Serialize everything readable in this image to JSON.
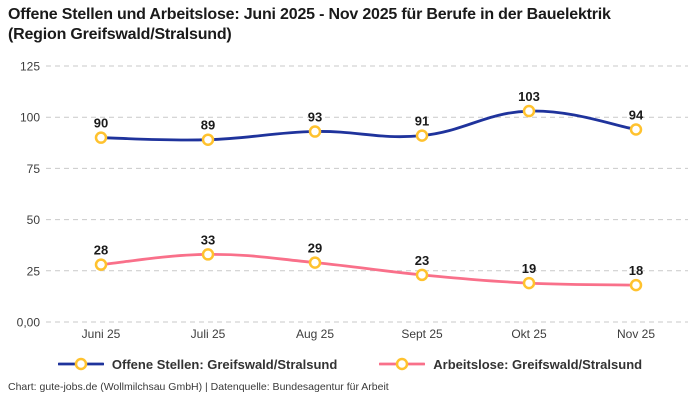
{
  "header": {
    "title_line1": "Offene Stellen und Arbeitslose: Juni 2025 - Nov 2025 für Berufe in der Bauelektrik",
    "title_line2": "(Region Greifswald/Stralsund)"
  },
  "footer": {
    "credit": "Chart: gute-jobs.de (Wollmilchsau GmbH) | Datenquelle: Bundesagentur für Arbeit"
  },
  "colors": {
    "background": "#FFFFFF",
    "title": "#1A1A1A",
    "grid": "#C9C9C9",
    "axis_label": "#3D3D3D",
    "data_label": "#1A1A1A",
    "legend_text": "#333333"
  },
  "chart_data": {
    "type": "line",
    "title": "Offene Stellen und Arbeitslose: Juni 2025 - Nov 2025 für Berufe in der Bauelektrik (Region Greifswald/Stralsund)",
    "categories": [
      "Juni 25",
      "Juli 25",
      "Aug 25",
      "Sept 25",
      "Okt 25",
      "Nov 25"
    ],
    "series": [
      {
        "name": "Offene Stellen: Greifswald/Stralsund",
        "color": "#1F339C",
        "values": [
          90,
          89,
          93,
          91,
          103,
          94
        ]
      },
      {
        "name": "Arbeitslose: Greifswald/Stralsund",
        "color": "#F9708A",
        "values": [
          28,
          33,
          29,
          23,
          19,
          18
        ]
      }
    ],
    "marker": {
      "shape": "circle",
      "stroke": "#FFC22E",
      "fill": "#FFFFFF"
    },
    "yticks": [
      {
        "value": 0,
        "label": "0,00"
      },
      {
        "value": 25,
        "label": "25"
      },
      {
        "value": 50,
        "label": "50"
      },
      {
        "value": 75,
        "label": "75"
      },
      {
        "value": 100,
        "label": "100"
      },
      {
        "value": 125,
        "label": "125"
      }
    ],
    "ylim": [
      0,
      125
    ],
    "grid": true,
    "grid_style": "dashed",
    "legend_position": "bottom",
    "data_labels": true
  }
}
